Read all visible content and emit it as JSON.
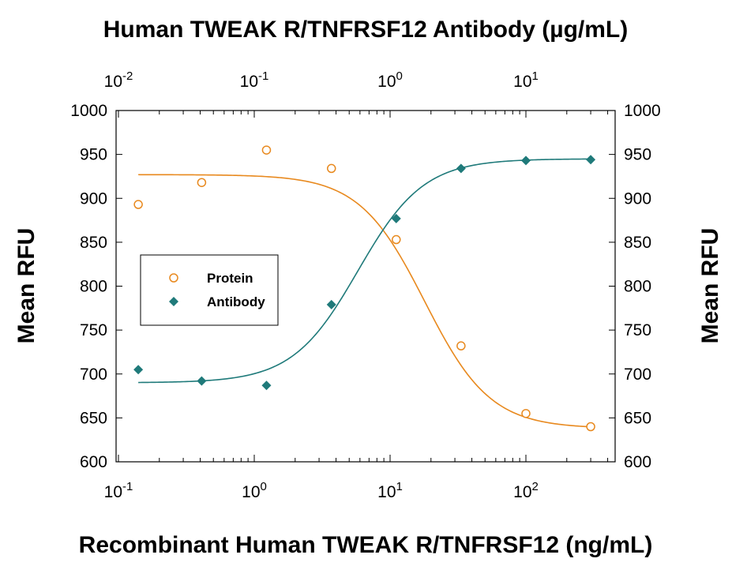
{
  "chart_data": {
    "type": "scatter",
    "title_top": "Human TWEAK R/TNFRSF12 Antibody (µg/mL)",
    "xlabel": "Recombinant Human TWEAK R/TNFRSF12 (ng/mL)",
    "ylabel_left": "Mean RFU",
    "ylabel_right": "Mean RFU",
    "x_scale": "log",
    "xlim": [
      0.1,
      400
    ],
    "xlim_top": [
      0.01,
      40
    ],
    "ylim": [
      600,
      1000
    ],
    "y_ticks": [
      "600",
      "650",
      "700",
      "750",
      "800",
      "850",
      "900",
      "950",
      "1000"
    ],
    "x_ticks_bottom": [
      {
        "base": "10",
        "exp": "-1",
        "value": 0.1
      },
      {
        "base": "10",
        "exp": "0",
        "value": 1
      },
      {
        "base": "10",
        "exp": "1",
        "value": 10
      },
      {
        "base": "10",
        "exp": "2",
        "value": 100
      }
    ],
    "x_ticks_top": [
      {
        "base": "10",
        "exp": "-2",
        "value": 0.01
      },
      {
        "base": "10",
        "exp": "-1",
        "value": 0.1
      },
      {
        "base": "10",
        "exp": "0",
        "value": 1
      },
      {
        "base": "10",
        "exp": "1",
        "value": 10
      }
    ],
    "legend_position": "middle-left",
    "series": [
      {
        "name": "Protein",
        "marker": "open-circle",
        "color": "#E8891E",
        "x": [
          0.14,
          0.41,
          1.23,
          3.7,
          11.1,
          33.3,
          100,
          300
        ],
        "y": [
          893,
          918,
          955,
          934,
          853,
          732,
          655,
          640
        ],
        "fit": {
          "top": 927,
          "bottom": 638,
          "ec50": 18,
          "hill": 1.8,
          "direction": "decreasing"
        }
      },
      {
        "name": "Antibody",
        "marker": "filled-diamond",
        "color": "#1F7A7A",
        "x": [
          0.14,
          0.41,
          1.23,
          3.7,
          11.1,
          33.3,
          100,
          300
        ],
        "y": [
          705,
          692,
          687,
          779,
          877,
          934,
          943,
          944
        ],
        "fit": {
          "top": 945,
          "bottom": 690,
          "ec50": 5.8,
          "hill": 1.8,
          "direction": "increasing"
        }
      }
    ]
  }
}
